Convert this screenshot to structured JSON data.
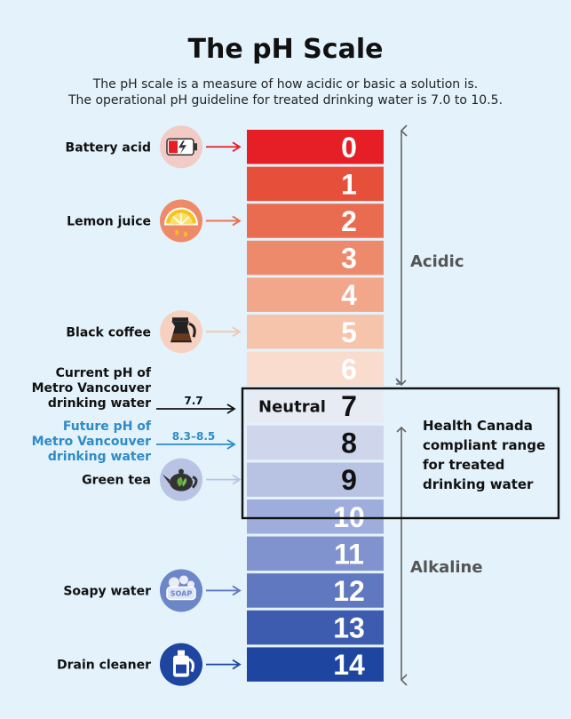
{
  "title": "The pH Scale",
  "subtitle_lines": [
    "The pH scale is a measure of how acidic or basic a solution is.",
    "The operational pH guideline for treated drinking water is 7.0 to 10.5."
  ],
  "scale": [
    {
      "value": "0",
      "color": "#e51f25"
    },
    {
      "value": "1",
      "color": "#e6503a"
    },
    {
      "value": "2",
      "color": "#ea6c50"
    },
    {
      "value": "3",
      "color": "#ee8a6c"
    },
    {
      "value": "4",
      "color": "#f2a78b"
    },
    {
      "value": "5",
      "color": "#f6c3ab"
    },
    {
      "value": "6",
      "color": "#f9dccd"
    },
    {
      "value": "7",
      "color": "#e7ecf4"
    },
    {
      "value": "8",
      "color": "#cfd6ec"
    },
    {
      "value": "9",
      "color": "#b8c3e4"
    },
    {
      "value": "10",
      "color": "#9eaddb"
    },
    {
      "value": "11",
      "color": "#8193cf"
    },
    {
      "value": "12",
      "color": "#5f78c0"
    },
    {
      "value": "13",
      "color": "#3d5cb0"
    },
    {
      "value": "14",
      "color": "#1e46a0"
    }
  ],
  "neutral_label": "Neutral",
  "acidic_label": "Acidic",
  "alkaline_label": "Alkaline",
  "health_canada_lines": [
    "Health Canada",
    "compliant range",
    "for treated",
    "drinking water"
  ],
  "substances": [
    {
      "label_lines": [
        "Battery acid"
      ],
      "ph": 0,
      "icon": "battery-icon",
      "arrow_color": "#e51f25",
      "icon_bg": "#f2cbc6"
    },
    {
      "label_lines": [
        "Lemon juice"
      ],
      "ph": 2,
      "icon": "lemon-icon",
      "arrow_color": "#ea6c50",
      "icon_bg": "#ef8a69"
    },
    {
      "label_lines": [
        "Black coffee"
      ],
      "ph": 5,
      "icon": "coffee-pot-icon",
      "arrow_color": "#f6c3ab",
      "icon_bg": "#f7d1bf"
    },
    {
      "label_lines": [
        "Green tea"
      ],
      "ph": 9,
      "icon": "teapot-icon",
      "arrow_color": "#b8c3e4",
      "icon_bg": "#b9c4e4"
    },
    {
      "label_lines": [
        "Soapy water"
      ],
      "ph": 12,
      "icon": "soap-icon",
      "arrow_color": "#5f78c0",
      "icon_bg": "#6d86c8"
    },
    {
      "label_lines": [
        "Drain cleaner"
      ],
      "ph": 14,
      "icon": "drain-cleaner-icon",
      "arrow_color": "#1e46a0",
      "icon_bg": "#1e46a0"
    }
  ],
  "soap_text": "SOAP",
  "current": {
    "label_lines": [
      "Current pH of",
      "Metro Vancouver",
      "drinking water"
    ],
    "value": "7.7",
    "color": "#111111"
  },
  "future": {
    "label_lines": [
      "Future pH of",
      "Metro Vancouver",
      "drinking water"
    ],
    "value": "8.3–8.5",
    "color": "#2e8bc8"
  }
}
